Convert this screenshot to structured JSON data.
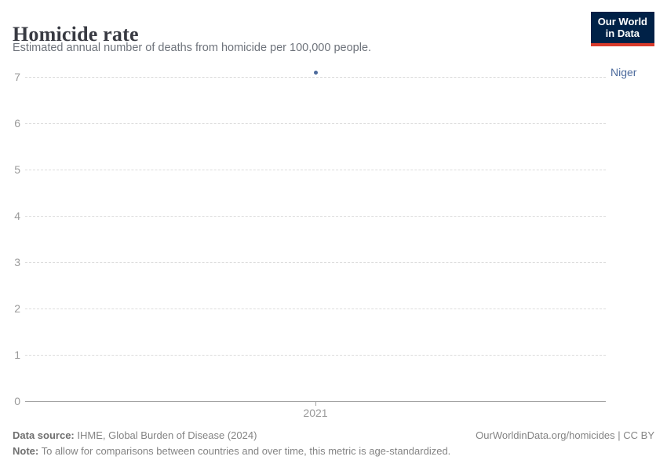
{
  "header": {
    "title": "Homicide rate",
    "subtitle": "Estimated annual number of deaths from homicide per 100,000 people.",
    "logo": {
      "line1": "Our World",
      "line2": "in Data"
    }
  },
  "chart_data": {
    "type": "scatter",
    "title": "Homicide rate",
    "subtitle": "Estimated annual number of deaths from homicide per 100,000 people.",
    "series": [
      {
        "name": "Niger",
        "color": "#4c6a9c",
        "points": [
          {
            "x": 2021,
            "y": 7.1
          }
        ]
      }
    ],
    "categories": [
      2021
    ],
    "xticks": [
      "2021"
    ],
    "yticks": [
      0,
      1,
      2,
      3,
      4,
      5,
      6,
      7
    ],
    "ylim": [
      0,
      7.2
    ],
    "xlabel": "",
    "ylabel": "",
    "grid": "horizontal-dashed",
    "legend_position": "right-of-last-point"
  },
  "entity_label": "Niger",
  "footer": {
    "source_label": "Data source:",
    "source_text": " IHME, Global Burden of Disease (2024)",
    "link": "OurWorldinData.org/homicides | CC BY",
    "note_label": "Note:",
    "note_text": " To allow for comparisons between countries and over time, this metric is age-standardized."
  },
  "colors": {
    "accent_blue": "#4c6a9c",
    "logo_bg": "#002147",
    "logo_red": "#d93a2b",
    "grid": "#dcdcdc",
    "axis": "#a3a3a3",
    "tick_text": "#9a9a9a"
  }
}
